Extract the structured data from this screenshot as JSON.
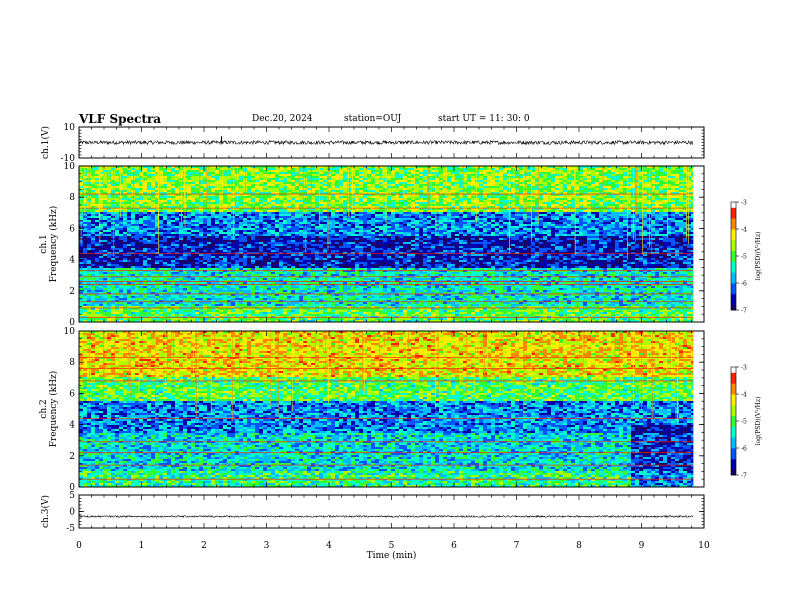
{
  "header": {
    "title": "VLF Spectra",
    "date": "Dec.20, 2024",
    "station": "station=OUJ",
    "start_ut": "start  UT  =   11: 30: 0"
  },
  "colors": {
    "spectrogram_palette": [
      "#1a0066",
      "#0000aa",
      "#0055ff",
      "#00bbff",
      "#00ffcc",
      "#33ff33",
      "#aaff00",
      "#ffee00",
      "#ff8800",
      "#ff2200",
      "#ffffff"
    ],
    "waveform": "#000000"
  },
  "chart_data": [
    {
      "type": "line",
      "panel": "ch1-waveform",
      "ylabel": "ch.1(V)",
      "ylim": [
        -10,
        10
      ],
      "yticks": [
        10,
        -10
      ],
      "x_range": [
        0,
        9.83
      ],
      "baseline_value": 0,
      "noise_amplitude": 1.2,
      "spikes": [
        {
          "x": 2.28,
          "y": 4
        }
      ]
    },
    {
      "type": "heatmap",
      "panel": "ch1-spectrogram",
      "ylabel": "ch.1\nFrequency (kHz)",
      "ylim": [
        0,
        10
      ],
      "yticks": [
        0,
        2,
        4,
        6,
        8,
        10
      ],
      "x_range": [
        0,
        9.83
      ],
      "colorbar": {
        "label": "log(PSD)(V²/Hz)",
        "ticks": [
          -3,
          -4,
          -5,
          -6,
          -7
        ],
        "range": [
          -7,
          -3
        ]
      },
      "bands": [
        {
          "from_khz": 0,
          "to_khz": 1.0,
          "level": -5.0
        },
        {
          "from_khz": 1.0,
          "to_khz": 3.5,
          "level": -5.5
        },
        {
          "from_khz": 3.5,
          "to_khz": 5.5,
          "level": -6.5
        },
        {
          "from_khz": 5.5,
          "to_khz": 7.0,
          "level": -6.0
        },
        {
          "from_khz": 7.0,
          "to_khz": 10.0,
          "level": -4.8
        }
      ],
      "tone_lines_khz": [
        0.3,
        0.9,
        1.3,
        1.8,
        2.4,
        2.6,
        2.9,
        3.3,
        4.4,
        7.3,
        8.2
      ]
    },
    {
      "type": "heatmap",
      "panel": "ch2-spectrogram",
      "ylabel": "ch.2\nFrequency (kHz)",
      "ylim": [
        0,
        10
      ],
      "yticks": [
        0,
        2,
        4,
        6,
        8,
        10
      ],
      "x_range": [
        0,
        9.83
      ],
      "colorbar": {
        "label": "log(PSD)(V²/Hz)",
        "ticks": [
          -3,
          -4,
          -5,
          -6,
          -7
        ],
        "range": [
          -7,
          -3
        ]
      },
      "bands": [
        {
          "from_khz": 0,
          "to_khz": 1.0,
          "level": -5.2
        },
        {
          "from_khz": 1.0,
          "to_khz": 3.5,
          "level": -5.6
        },
        {
          "from_khz": 3.5,
          "to_khz": 5.5,
          "level": -6.0
        },
        {
          "from_khz": 5.5,
          "to_khz": 7.0,
          "level": -5.0
        },
        {
          "from_khz": 7.0,
          "to_khz": 10.0,
          "level": -4.2
        }
      ],
      "tone_lines_khz": [
        0.5,
        1.4,
        2.2,
        2.9,
        4.4,
        6.8,
        7.6,
        8.3
      ],
      "change_at_min": 8.8
    },
    {
      "type": "line",
      "panel": "ch3-waveform",
      "ylabel": "ch.3(V)",
      "ylim": [
        -5,
        5
      ],
      "yticks": [
        5,
        0,
        -5
      ],
      "x_range": [
        0,
        9.83
      ],
      "baseline_value": -1.5,
      "noise_amplitude": 0.25
    }
  ],
  "xaxis": {
    "label": "Time  (min)",
    "ticks": [
      0,
      1,
      2,
      3,
      4,
      5,
      6,
      7,
      8,
      9,
      10
    ],
    "range": [
      0,
      10
    ]
  }
}
